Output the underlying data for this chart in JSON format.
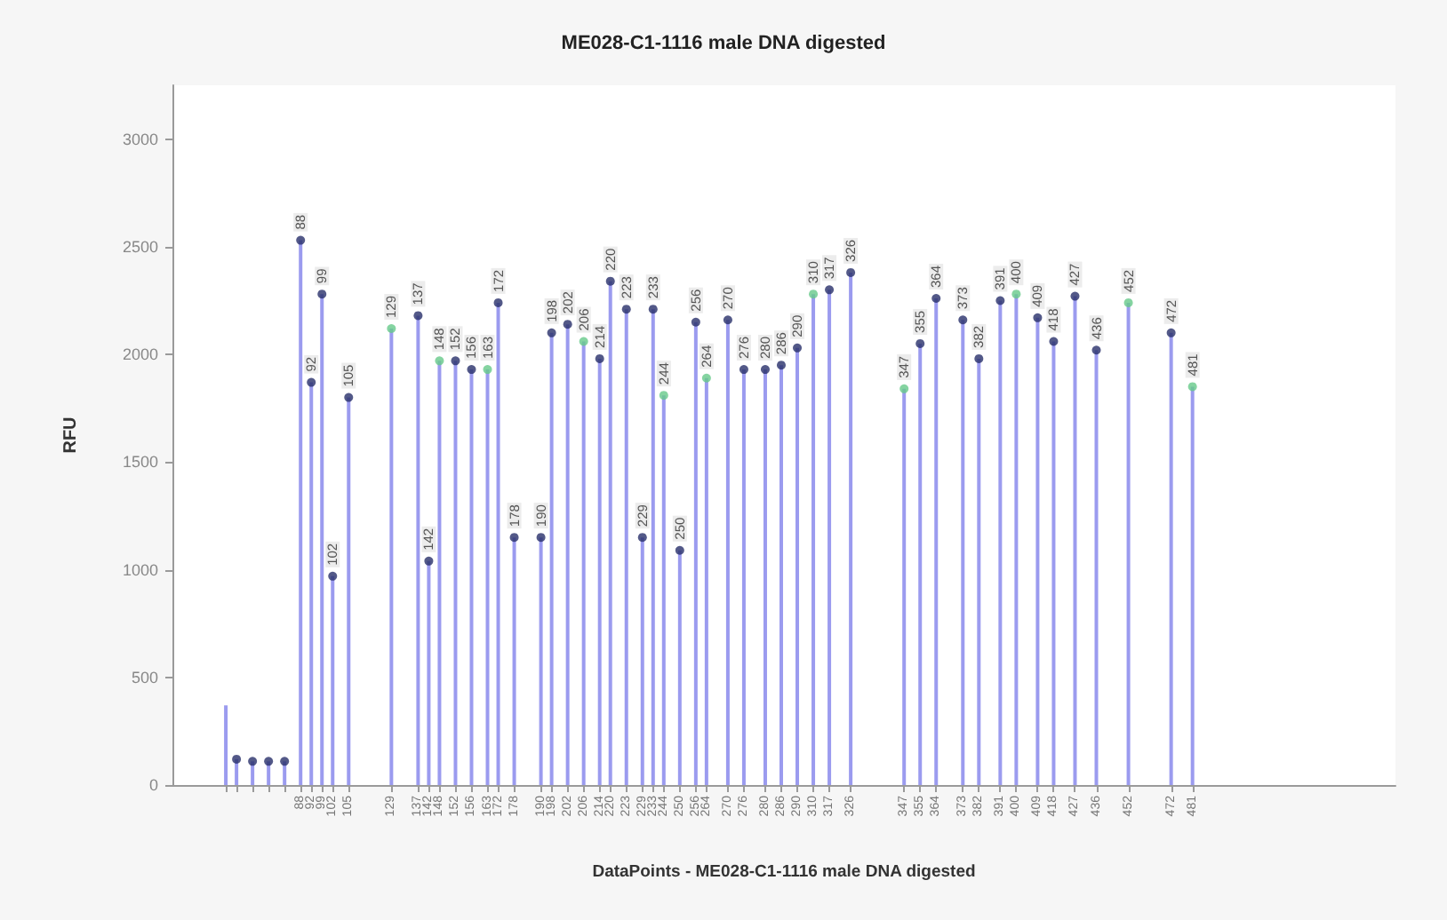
{
  "chart_data": {
    "type": "lollipop",
    "title": "ME028-C1-1116 male DNA digested",
    "xlabel": "DataPoints - ME028-C1-1116 male DNA digested",
    "ylabel": "RFU",
    "ylim": [
      0,
      3250
    ],
    "yticks": [
      0,
      500,
      1000,
      1500,
      2000,
      2500,
      3000
    ],
    "grid": false,
    "marker": "circle",
    "categories": [
      null,
      null,
      null,
      null,
      null,
      null,
      null,
      null,
      null,
      null,
      null,
      null,
      null,
      null,
      null,
      null,
      null,
      null,
      null,
      null,
      null,
      null,
      null,
      null,
      "88",
      null,
      "92",
      null,
      "99",
      null,
      "102",
      null,
      null,
      "105",
      null,
      null,
      null,
      null,
      null,
      null,
      null,
      "129",
      null,
      null,
      null,
      null,
      "137",
      null,
      "142",
      null,
      "148",
      null,
      null,
      "152",
      null,
      null,
      "156",
      null,
      null,
      "163",
      null,
      "172",
      null,
      null,
      "178",
      null,
      null,
      null,
      null,
      "190",
      null,
      "198",
      null,
      null,
      "202",
      null,
      null,
      "206",
      null,
      null,
      "214",
      null,
      "220",
      null,
      null,
      "223",
      null,
      null,
      "229",
      null,
      "233",
      null,
      "244",
      null,
      null,
      "250",
      null,
      null,
      "256",
      null,
      "264",
      null,
      null,
      null,
      "270",
      null,
      null,
      "276",
      null,
      null,
      null,
      "280",
      null,
      null,
      "286",
      null,
      null,
      "290",
      null,
      null,
      "310",
      null,
      null,
      "317",
      null,
      null,
      null,
      "326",
      null,
      null,
      null,
      null,
      null,
      null,
      null,
      null,
      null,
      "347",
      null,
      null,
      "355",
      null,
      null,
      "364",
      null,
      null,
      null,
      null,
      "373",
      null,
      null,
      "382",
      null,
      null,
      null,
      "391",
      null,
      null,
      "400",
      null,
      null,
      null,
      "409",
      null,
      null,
      "418",
      null,
      null,
      null,
      "427",
      null,
      null,
      null,
      "436",
      null,
      null,
      null,
      null,
      null,
      "452",
      null,
      null,
      null,
      null,
      null,
      null,
      null,
      "472",
      null,
      null,
      null,
      "481",
      null,
      null,
      null,
      null,
      null,
      null,
      null,
      null,
      null,
      null,
      null,
      null,
      null,
      null,
      null,
      null,
      null,
      null,
      null,
      null,
      null,
      null,
      null,
      null,
      null,
      null,
      null,
      null,
      null,
      null,
      null,
      null,
      null,
      null,
      null,
      null,
      null,
      null
    ],
    "annotations": [
      {
        "text": "88",
        "x": "88",
        "y": 2530
      },
      {
        "text": "92",
        "x": "92",
        "y": 1870
      },
      {
        "text": "99",
        "x": "99",
        "y": 2280
      },
      {
        "text": "102",
        "x": "102",
        "y": 970
      },
      {
        "text": "105",
        "x": "105",
        "y": 1800
      },
      {
        "text": "129",
        "x": "129",
        "y": 2120
      },
      {
        "text": "137",
        "x": "137",
        "y": 2180
      },
      {
        "text": "142",
        "x": "142",
        "y": 1040
      },
      {
        "text": "148",
        "x": "148",
        "y": 1970
      },
      {
        "text": "152",
        "x": "152",
        "y": 1970
      },
      {
        "text": "156",
        "x": "156",
        "y": 1930
      },
      {
        "text": "163",
        "x": "163",
        "y": 1930
      },
      {
        "text": "172",
        "x": "172",
        "y": 2240
      },
      {
        "text": "178",
        "x": "178",
        "y": 1150
      },
      {
        "text": "190",
        "x": "190",
        "y": 1150
      },
      {
        "text": "198",
        "x": "198",
        "y": 2100
      },
      {
        "text": "202",
        "x": "202",
        "y": 2140
      },
      {
        "text": "206",
        "x": "206",
        "y": 2060
      },
      {
        "text": "214",
        "x": "214",
        "y": 1980
      },
      {
        "text": "220",
        "x": "220",
        "y": 2340
      },
      {
        "text": "223",
        "x": "223",
        "y": 2210
      },
      {
        "text": "229",
        "x": "229",
        "y": 1150
      },
      {
        "text": "233",
        "x": "233",
        "y": 2210
      },
      {
        "text": "244",
        "x": "244",
        "y": 1810
      },
      {
        "text": "250",
        "x": "250",
        "y": 1090
      },
      {
        "text": "256",
        "x": "256",
        "y": 2150
      },
      {
        "text": "264",
        "x": "264",
        "y": 1890
      },
      {
        "text": "270",
        "x": "270",
        "y": 2160
      },
      {
        "text": "276",
        "x": "276",
        "y": 1930
      },
      {
        "text": "280",
        "x": "280",
        "y": 1930
      },
      {
        "text": "286",
        "x": "286",
        "y": 1950
      },
      {
        "text": "290",
        "x": "290",
        "y": 2030
      },
      {
        "text": "310",
        "x": "310",
        "y": 2280
      },
      {
        "text": "317",
        "x": "317",
        "y": 2300
      },
      {
        "text": "326",
        "x": "326",
        "y": 2380
      },
      {
        "text": "347",
        "x": "347",
        "y": 1840
      },
      {
        "text": "355",
        "x": "355",
        "y": 2050
      },
      {
        "text": "364",
        "x": "364",
        "y": 2260
      },
      {
        "text": "373",
        "x": "373",
        "y": 2160
      },
      {
        "text": "382",
        "x": "382",
        "y": 1980
      },
      {
        "text": "391",
        "x": "391",
        "y": 2250
      },
      {
        "text": "400",
        "x": "400",
        "y": 2280
      },
      {
        "text": "409",
        "x": "409",
        "y": 2170
      },
      {
        "text": "418",
        "x": "418",
        "y": 2060
      },
      {
        "text": "427",
        "x": "427",
        "y": 2270
      },
      {
        "text": "436",
        "x": "436",
        "y": 2020
      },
      {
        "text": "452",
        "x": "452",
        "y": 2240
      },
      {
        "text": "472",
        "x": "472",
        "y": 2100
      },
      {
        "text": "481",
        "x": "481",
        "y": 1850
      }
    ],
    "series": [
      {
        "color": "#9b9bef",
        "values": [
          null,
          null,
          null,
          null,
          null,
          null,
          null,
          null,
          null,
          null,
          null,
          null,
          120,
          null,
          null,
          110,
          null,
          null,
          110,
          null,
          null,
          110,
          null,
          null,
          2530,
          null,
          1870,
          null,
          2280,
          null,
          970,
          null,
          null,
          1800,
          null,
          null,
          null,
          null,
          null,
          null,
          null,
          2120,
          null,
          null,
          null,
          null,
          2180,
          null,
          1040,
          null,
          1970,
          null,
          null,
          1970,
          null,
          null,
          1930,
          null,
          null,
          1930,
          null,
          2240,
          null,
          null,
          1150,
          null,
          null,
          null,
          null,
          1150,
          null,
          2100,
          null,
          null,
          2140,
          null,
          null,
          2060,
          null,
          null,
          1980,
          null,
          2340,
          null,
          null,
          2210,
          null,
          null,
          1150,
          null,
          2210,
          null,
          1810,
          null,
          null,
          1090,
          null,
          null,
          2150,
          null,
          1890,
          null,
          null,
          null,
          2160,
          null,
          null,
          1930,
          null,
          null,
          null,
          1930,
          null,
          null,
          1950,
          null,
          null,
          2030,
          null,
          null,
          2280,
          null,
          null,
          2300,
          null,
          null,
          null,
          2380,
          null,
          null,
          null,
          null,
          null,
          null,
          null,
          null,
          null,
          1840,
          null,
          null,
          2050,
          null,
          null,
          2260,
          null,
          null,
          null,
          null,
          2160,
          null,
          null,
          1980,
          null,
          null,
          null,
          2250,
          null,
          null,
          2280,
          null,
          null,
          null,
          2170,
          null,
          null,
          2060,
          null,
          null,
          null,
          2270,
          null,
          null,
          null,
          2020,
          null,
          null,
          null,
          null,
          null,
          2240,
          null,
          null,
          null,
          null,
          null,
          null,
          null,
          2100,
          null,
          null,
          null,
          1850,
          null,
          null,
          null,
          null,
          null,
          null,
          null,
          null,
          null,
          null,
          null,
          null,
          null,
          null,
          null,
          null,
          null,
          null,
          null,
          null,
          null,
          null,
          null,
          null,
          null,
          null,
          null,
          null,
          null,
          null,
          null,
          null,
          null,
          null,
          null,
          null,
          null,
          null
        ],
        "colors": [
          null,
          null,
          null,
          null,
          null,
          null,
          null,
          null,
          null,
          null,
          null,
          null,
          "#28306a",
          null,
          null,
          "#28306a",
          null,
          null,
          "#28306a",
          null,
          null,
          "#28306a",
          null,
          null,
          "#28306a",
          null,
          "#28306a",
          null,
          "#28306a",
          null,
          "#28306a",
          null,
          null,
          "#28306a",
          null,
          null,
          null,
          null,
          null,
          null,
          null,
          "#66c98a",
          null,
          null,
          null,
          null,
          "#28306a",
          null,
          "#28306a",
          null,
          "#66c98a",
          null,
          null,
          "#28306a",
          null,
          null,
          "#28306a",
          null,
          null,
          "#66c98a",
          null,
          "#28306a",
          null,
          null,
          "#28306a",
          null,
          null,
          null,
          null,
          "#28306a",
          null,
          "#28306a",
          null,
          null,
          "#28306a",
          null,
          null,
          "#66c98a",
          null,
          null,
          "#28306a",
          null,
          "#28306a",
          null,
          null,
          "#28306a",
          null,
          null,
          "#28306a",
          null,
          "#28306a",
          null,
          "#66c98a",
          null,
          null,
          "#28306a",
          null,
          null,
          "#28306a",
          null,
          "#66c98a",
          null,
          null,
          null,
          "#28306a",
          null,
          null,
          "#28306a",
          null,
          null,
          null,
          "#28306a",
          null,
          null,
          "#28306a",
          null,
          null,
          "#28306a",
          null,
          null,
          "#66c98a",
          null,
          null,
          "#28306a",
          null,
          null,
          null,
          "#28306a",
          null,
          null,
          null,
          null,
          null,
          null,
          null,
          null,
          null,
          "#66c98a",
          null,
          null,
          "#28306a",
          null,
          null,
          "#28306a",
          null,
          null,
          null,
          null,
          "#28306a",
          null,
          null,
          "#28306a",
          null,
          null,
          null,
          "#28306a",
          null,
          null,
          "#66c98a",
          null,
          null,
          null,
          "#28306a",
          null,
          null,
          "#28306a",
          null,
          null,
          null,
          "#28306a",
          null,
          null,
          null,
          "#28306a",
          null,
          null,
          null,
          null,
          null,
          "#66c98a",
          null,
          null,
          null,
          null,
          null,
          null,
          null,
          "#28306a",
          null,
          null,
          null,
          "#66c98a",
          null,
          null,
          null,
          null,
          null,
          null,
          null,
          null,
          null,
          null,
          null,
          null,
          null,
          null,
          null,
          null,
          null,
          null,
          null,
          null,
          null,
          null,
          null,
          null,
          null,
          null,
          null,
          null,
          null,
          null,
          null,
          null,
          null,
          null,
          null,
          null,
          null,
          null
        ]
      },
      {
        "type": "bar",
        "color": "#9b9bef",
        "values": [
          null,
          null,
          null,
          null,
          null,
          null,
          null,
          null,
          null,
          null,
          370,
          null,
          null,
          null,
          null,
          null,
          null,
          null,
          null,
          null,
          null,
          null,
          null,
          null,
          null,
          null,
          null,
          null,
          null,
          null,
          null,
          null,
          null,
          null,
          null,
          null,
          null,
          null,
          null,
          null,
          null,
          null,
          null,
          null,
          null,
          null,
          null,
          null,
          null,
          null,
          null,
          null,
          null,
          null,
          null,
          null,
          null,
          null,
          null,
          null,
          null,
          null,
          null,
          null,
          null,
          null,
          null,
          null,
          null,
          null,
          null,
          null,
          null,
          null,
          null,
          null,
          null,
          null,
          null,
          null,
          null,
          null,
          null,
          null,
          null,
          null,
          null,
          null,
          null,
          null,
          null,
          null,
          null,
          null,
          null,
          null,
          null,
          null,
          null,
          null,
          null,
          null,
          null,
          null,
          null,
          null,
          null,
          null,
          null,
          null,
          null,
          null,
          null,
          null,
          null,
          null,
          null,
          null,
          null,
          null,
          null,
          null,
          null,
          null,
          null,
          null,
          null,
          null,
          null,
          null,
          null,
          null,
          null,
          null,
          null,
          null,
          null,
          null,
          null,
          null,
          null,
          null,
          null,
          null,
          null,
          null,
          null,
          null,
          null,
          null,
          null,
          null,
          null,
          null,
          null,
          null,
          null,
          null,
          null,
          null,
          null,
          null,
          null,
          null,
          null,
          null,
          null,
          null,
          null,
          null,
          null,
          null,
          null,
          null,
          null,
          null,
          null,
          null,
          null,
          null,
          null,
          null,
          null,
          null,
          null,
          null,
          null,
          null,
          null,
          null,
          null,
          null,
          null,
          null,
          null,
          null,
          null,
          null,
          null,
          null,
          null,
          null,
          null,
          null,
          null,
          null,
          null,
          null,
          null,
          null,
          null,
          null,
          null,
          null,
          null,
          null,
          null,
          null,
          null,
          null,
          null,
          null,
          null,
          null,
          null,
          null,
          null,
          null,
          null,
          null
        ]
      }
    ]
  }
}
